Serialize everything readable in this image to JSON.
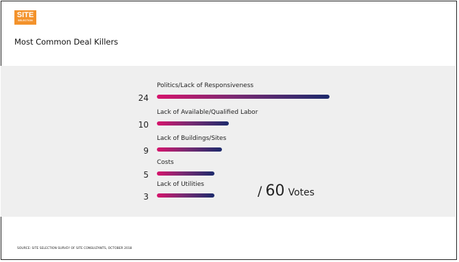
{
  "logo": {
    "main": "SITE",
    "sub": "SELECTION"
  },
  "title": "Most Common Deal Killers",
  "chart_data": {
    "type": "bar",
    "orientation": "horizontal",
    "categories": [
      "Politics/Lack of Responsiveness",
      "Lack of Available/Qualified Labor",
      "Lack of Buildings/Sites",
      "Costs",
      "Lack of Utilities"
    ],
    "values": [
      24,
      10,
      9,
      5,
      3
    ],
    "value_labels": [
      "24",
      "10",
      "9",
      "5",
      "3"
    ],
    "total": {
      "slash": "/",
      "number": "60",
      "unit": "Votes"
    },
    "bar_colors": [
      "#d6146c",
      "#1c2a6b"
    ],
    "title": "Most Common Deal Killers"
  },
  "footer": {
    "source": "SOURCE: SITE SELECTION SURVEY OF SITE CONSULTANTS, OCTOBER 2018"
  }
}
